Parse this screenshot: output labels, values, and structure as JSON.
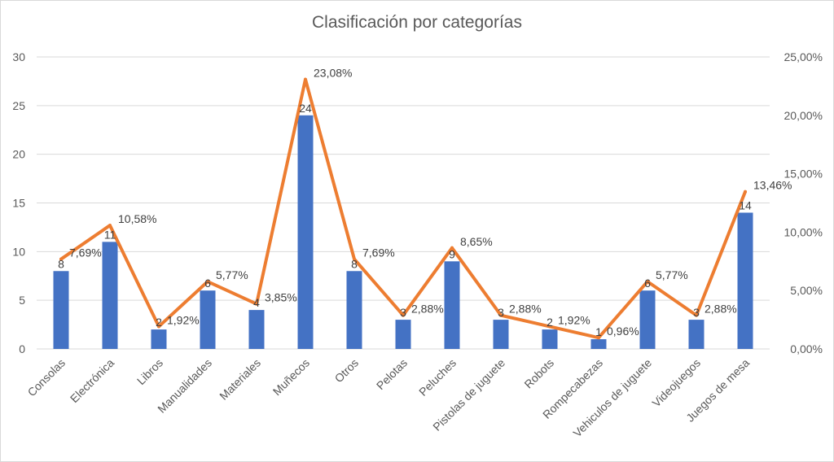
{
  "chart_data": {
    "type": "bar",
    "title": "Clasificación por categorías",
    "categories": [
      "Consolas",
      "Electrónica",
      "Libros",
      "Manualidades",
      "Materiales",
      "Muñecos",
      "Otros",
      "Pelotas",
      "Peluches",
      "Pistolas de juguete",
      "Robots",
      "Rompecabezas",
      "Vehiculos de juguete",
      "Videojuegos",
      "Juegos de mesa"
    ],
    "series": [
      {
        "type": "bar",
        "axis": "left",
        "values": [
          8,
          11,
          2,
          6,
          4,
          24,
          8,
          3,
          9,
          3,
          2,
          1,
          6,
          3,
          14
        ],
        "labels": [
          "8",
          "11",
          "2",
          "6",
          "4",
          "24",
          "8",
          "3",
          "9",
          "3",
          "2",
          "1",
          "6",
          "3",
          "14"
        ],
        "color": "#4472c4"
      },
      {
        "type": "line",
        "axis": "right",
        "values": [
          7.69,
          10.58,
          1.92,
          5.77,
          3.85,
          23.08,
          7.69,
          2.88,
          8.65,
          2.88,
          1.92,
          0.96,
          5.77,
          2.88,
          13.46
        ],
        "labels": [
          "7,69%",
          "10,58%",
          "1,92%",
          "5,77%",
          "3,85%",
          "23,08%",
          "7,69%",
          "2,88%",
          "8,65%",
          "2,88%",
          "1,92%",
          "0,96%",
          "5,77%",
          "2,88%",
          "13,46%"
        ],
        "color": "#ed7d31"
      }
    ],
    "y_left": {
      "range": [
        0,
        30
      ],
      "ticks": [
        "0",
        "5",
        "10",
        "15",
        "20",
        "25",
        "30"
      ]
    },
    "y_right": {
      "range": [
        0,
        25
      ],
      "ticks": [
        "0,00%",
        "5,00%",
        "10,00%",
        "15,00%",
        "20,00%",
        "25,00%"
      ]
    },
    "grid": true,
    "legend": "none"
  }
}
